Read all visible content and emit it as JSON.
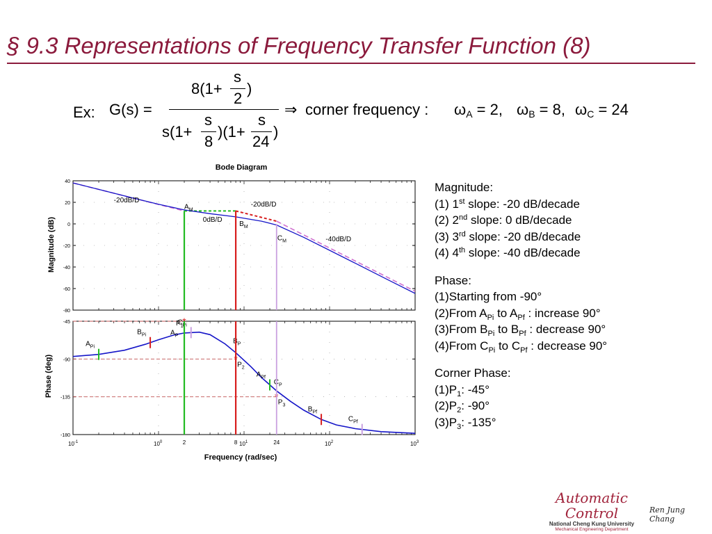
{
  "slide": {
    "title": "§ 9.3  Representations of Frequency Transfer Function (8)",
    "logo_text": "Automatic Control",
    "logo_sub1": "National Cheng Kung University",
    "logo_sub2": "Mechanical Engineering Department",
    "signature": "Ren Jung Chang"
  },
  "formula": {
    "ex_label": "Ex:",
    "lhs": "G(s) =",
    "num_left": "8(1+",
    "num_frac_top": "s",
    "num_frac_bot": "2",
    "num_right": ")",
    "den_left": "s(1+",
    "den_frac1_top": "s",
    "den_frac1_bot": "8",
    "den_mid": ")(1+",
    "den_frac2_top": "s",
    "den_frac2_bot": "24",
    "den_right": ")",
    "arrow": "⇒",
    "corner_text": "corner frequency :",
    "omega_a": "ω",
    "sub_a": "A",
    "val_a": "= 2,",
    "omega_b": "ω",
    "sub_b": "B",
    "val_b": "= 8,",
    "omega_c": "ω",
    "sub_c": "C",
    "val_c": "= 24"
  },
  "notes": {
    "mag_title": "Magnitude:",
    "mag": [
      {
        "n": "(1)  1",
        "sup": "st",
        "rest": " slope: -20 dB/decade"
      },
      {
        "n": "(2)  2",
        "sup": "nd",
        "rest": " slope: 0 dB/decade"
      },
      {
        "n": "(3)  3",
        "sup": "rd",
        "rest": " slope: -20 dB/decade"
      },
      {
        "n": "(4)  4",
        "sup": "th",
        "rest": " slope: -40 dB/decade"
      }
    ],
    "phase_title": "Phase:",
    "phase1": "(1)Starting from -90°",
    "phase2": {
      "a": "(2)From A",
      "s1": "Pi",
      "b": " to A",
      "s2": "Pf",
      "c": " :  increase 90°"
    },
    "phase3": {
      "a": "(3)From B",
      "s1": "Pi",
      "b": " to B",
      "s2": "Pf",
      "c": " : decrease 90°"
    },
    "phase4": {
      "a": "(4)From C",
      "s1": "Pi",
      "b": " to C",
      "s2": "Pf",
      "c": " : decrease 90°"
    },
    "corner_title": "Corner Phase:",
    "corner": [
      {
        "a": "(1)P",
        "s": "1",
        "b": ": -45°"
      },
      {
        "a": "(2)P",
        "s": "2",
        "b": ": -90°"
      },
      {
        "a": "(3)P",
        "s": "3",
        "b": ": -135°"
      }
    ]
  },
  "chart_data": {
    "type": "line",
    "title": "Bode Diagram",
    "xlabel": "Frequency  (rad/sec)",
    "xscale": "log",
    "xlim": [
      0.1,
      1000
    ],
    "x_tick_labels": [
      {
        "base": "10",
        "exp": "-1",
        "x": 0.1
      },
      {
        "base": "10",
        "exp": "0",
        "x": 1
      },
      {
        "base": "10",
        "exp": "1",
        "x": 10
      },
      {
        "base": "10",
        "exp": "2",
        "x": 100
      },
      {
        "base": "10",
        "exp": "3",
        "x": 1000
      }
    ],
    "extra_x_ticks": [
      {
        "label": "2",
        "x": 2
      },
      {
        "label": "8",
        "x": 8
      },
      {
        "label": "24",
        "x": 24
      }
    ],
    "magnitude": {
      "ylabel": "Magnitude (dB)",
      "ylim": [
        -80,
        40
      ],
      "yticks": [
        40,
        20,
        0,
        -20,
        -40,
        -60,
        -80
      ],
      "x": [
        0.1,
        0.2,
        0.5,
        1,
        2,
        4,
        8,
        16,
        24,
        50,
        100,
        200,
        500,
        1000
      ],
      "y": [
        38,
        32,
        24,
        18.2,
        13,
        9.5,
        6.5,
        2.5,
        -1,
        -12.5,
        -24.5,
        -36.5,
        -52.5,
        -64.5
      ],
      "asymptote_x": [
        0.1,
        2,
        8,
        24,
        1000
      ],
      "asymptote_y": [
        38,
        12,
        12,
        2.5,
        -62.5
      ],
      "annotations": [
        {
          "text": "-20dB/D",
          "x": 0.3,
          "y": 20
        },
        {
          "text": "A",
          "sub": "M",
          "x": 2,
          "y": 14
        },
        {
          "text": "-20dB/D",
          "x": 12,
          "y": 16
        },
        {
          "text": "0dB/D",
          "x": 3.3,
          "y": 2
        },
        {
          "text": "B",
          "sub": "M",
          "x": 8.8,
          "y": -2
        },
        {
          "text": "C",
          "sub": "M",
          "x": 24.5,
          "y": -15
        },
        {
          "text": "-40dB/D",
          "x": 90,
          "y": -16
        }
      ]
    },
    "phase": {
      "ylabel": "Phase (deg)",
      "ylim": [
        -180,
        -45
      ],
      "yticks": [
        -45,
        -90,
        -135,
        -180
      ],
      "x": [
        0.1,
        0.2,
        0.4,
        0.7,
        1,
        1.5,
        2,
        3,
        4,
        6,
        8,
        12,
        16,
        24,
        35,
        50,
        80,
        120,
        200,
        400,
        1000
      ],
      "y": [
        -87,
        -84.5,
        -79.5,
        -72.5,
        -67,
        -61.5,
        -59,
        -58,
        -61,
        -72,
        -82.5,
        -99,
        -112,
        -128,
        -140.5,
        -151,
        -162,
        -168.5,
        -173,
        -176.5,
        -178.5
      ],
      "corner_points": [
        {
          "label": "P",
          "sub": "1",
          "x": 2,
          "y": -45
        },
        {
          "label": "P",
          "sub": "2",
          "x": 8,
          "y": -90
        },
        {
          "label": "P",
          "sub": "3",
          "x": 24,
          "y": -135
        }
      ],
      "markers": [
        {
          "label": "A",
          "sub": "Pi",
          "x": 0.2,
          "color": "#22bb22"
        },
        {
          "label": "B",
          "sub": "Pi",
          "x": 0.8,
          "color": "#d81e1e"
        },
        {
          "label": "C",
          "sub": "Pi",
          "x": 2.4,
          "color": "#c9a0e0"
        },
        {
          "label": "A",
          "sub": "P",
          "x": 2,
          "color": "#22bb22"
        },
        {
          "label": "B",
          "sub": "P",
          "x": 8,
          "color": "#d81e1e"
        },
        {
          "label": "C",
          "sub": "P",
          "x": 24,
          "color": "#c9a0e0"
        },
        {
          "label": "A",
          "sub": "Pf",
          "x": 20,
          "color": "#22bb22"
        },
        {
          "label": "B",
          "sub": "Pf",
          "x": 80,
          "color": "#d81e1e"
        },
        {
          "label": "C",
          "sub": "Pf",
          "x": 240,
          "color": "#c9a0e0"
        }
      ]
    },
    "colors": {
      "curve": "#1515c8",
      "asymptote": "#d070d0",
      "asymptote_flat": "#22bb22",
      "asymptote_mid": "#d81e1e",
      "line_A": "#22bb22",
      "line_B": "#d81e1e",
      "line_C": "#c9a0e0",
      "dashed_ref": "#c05050",
      "star": "#d81e1e"
    }
  }
}
